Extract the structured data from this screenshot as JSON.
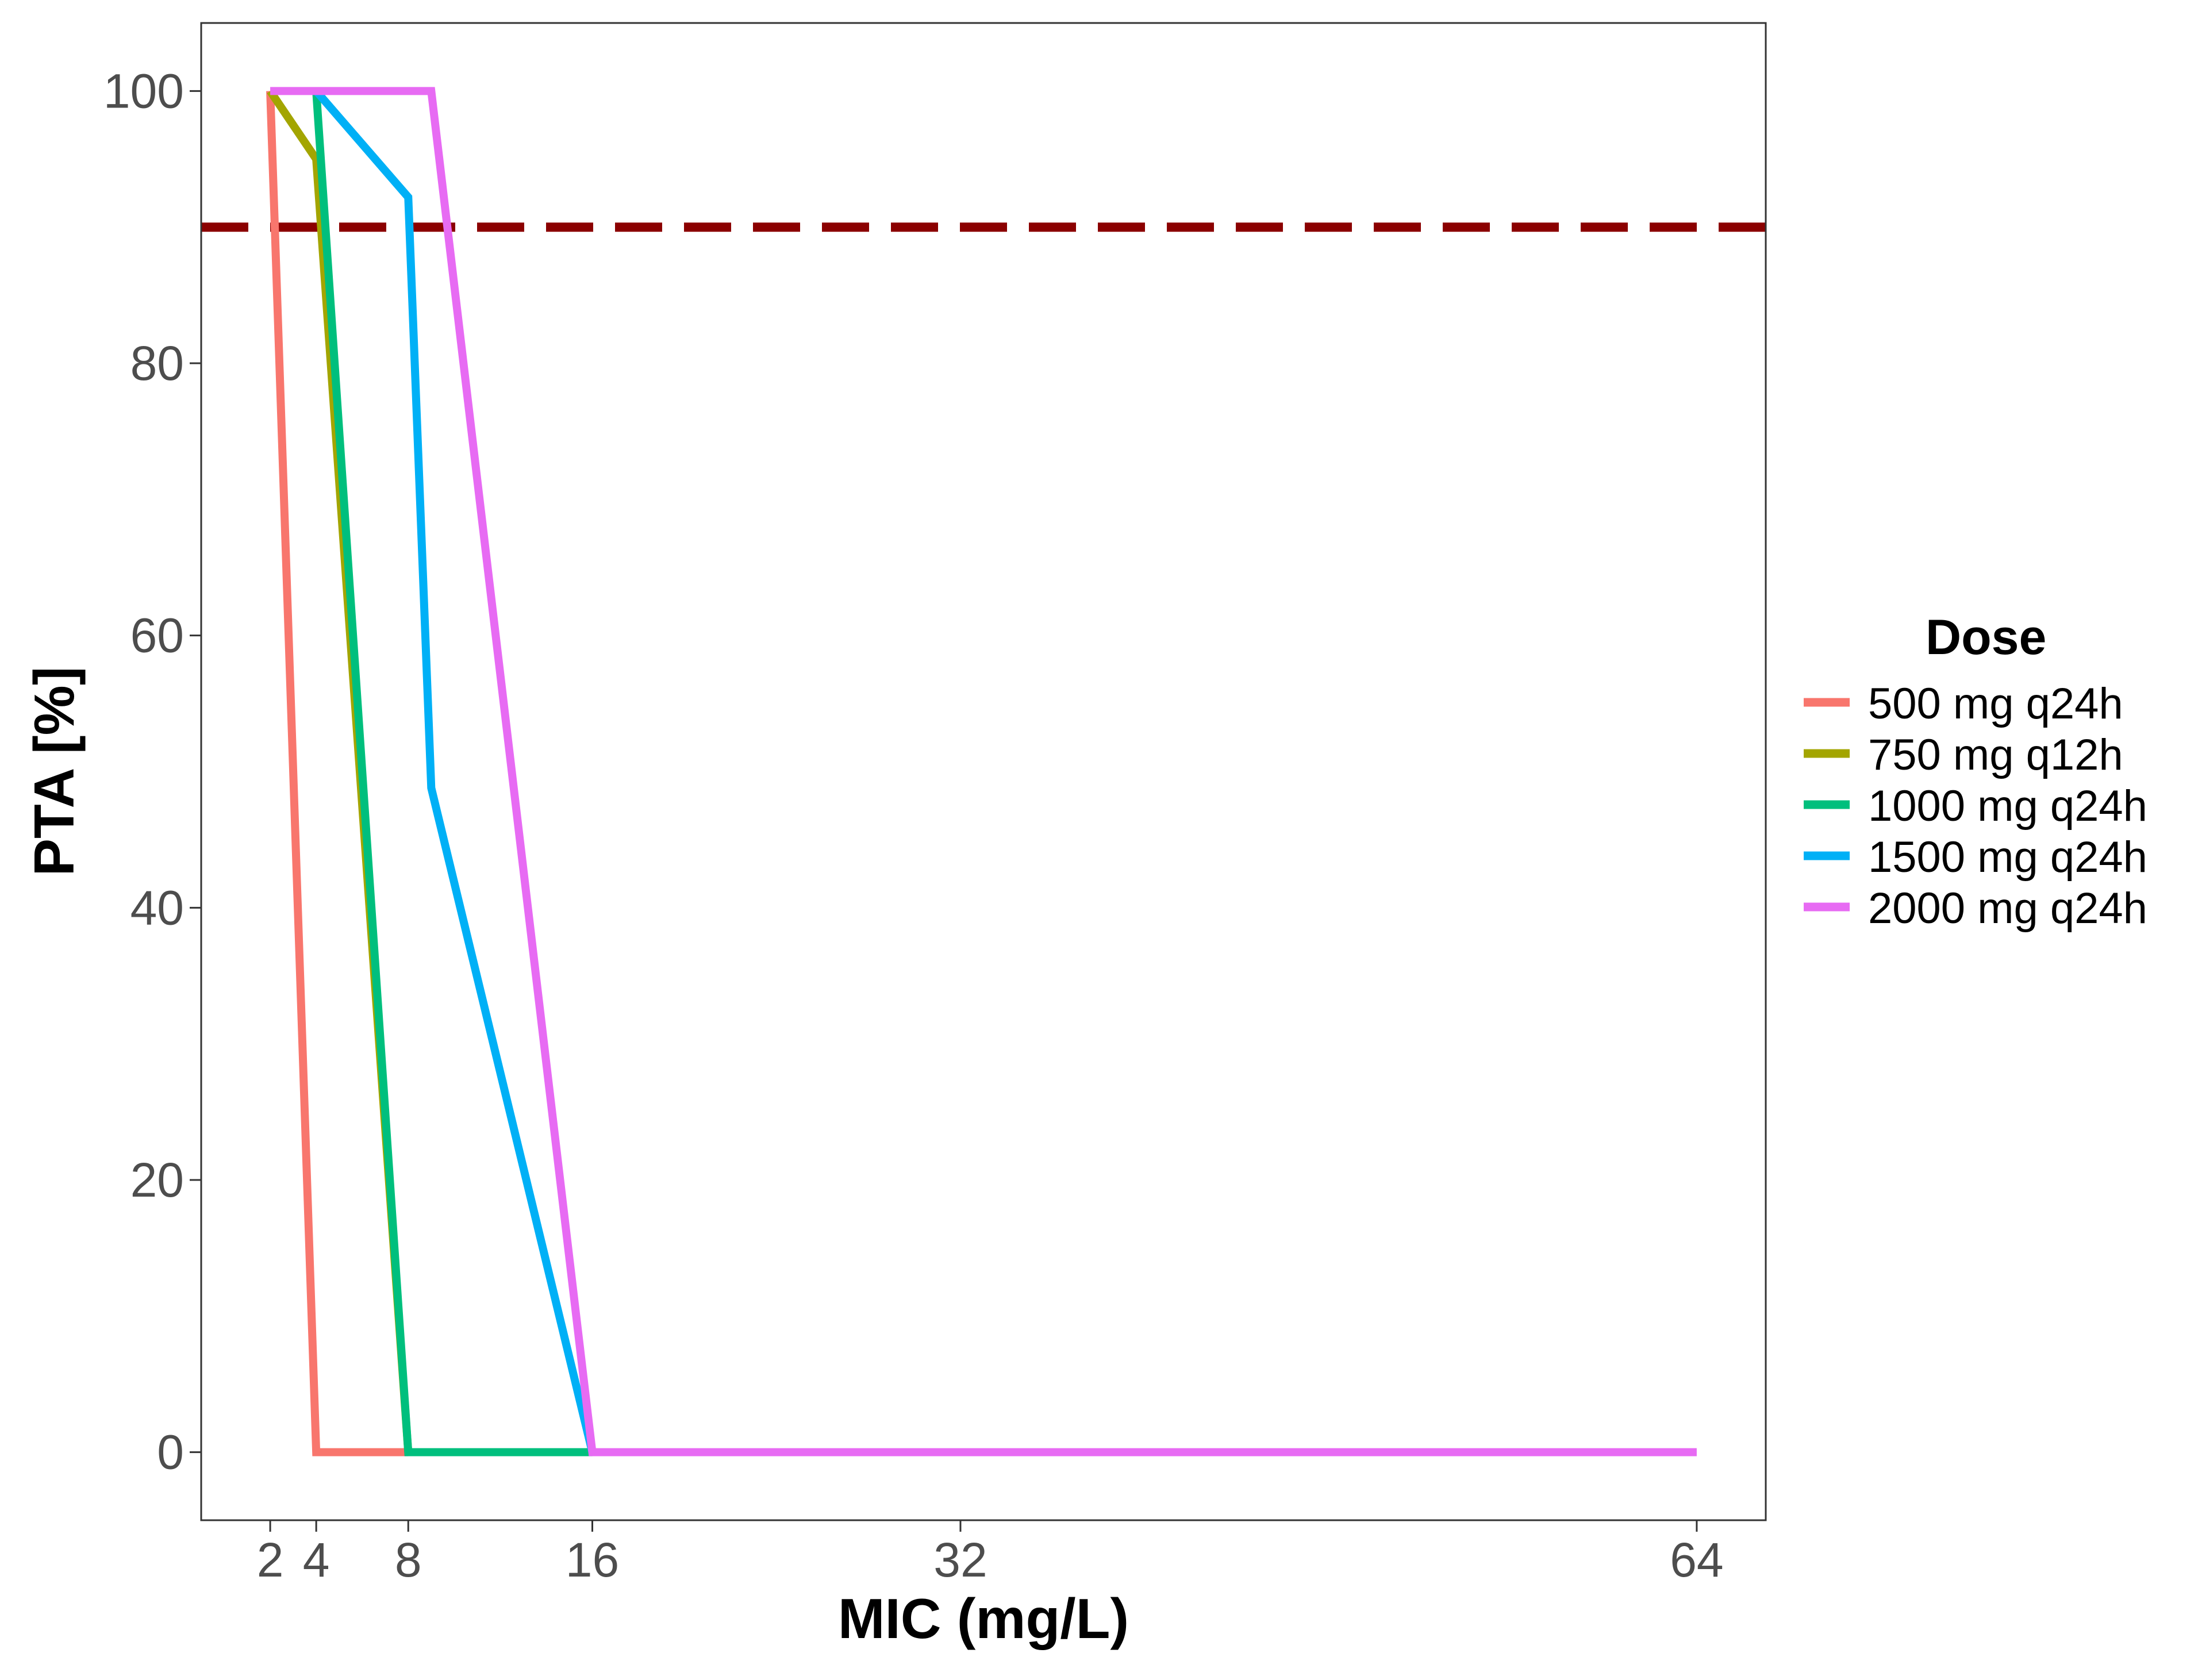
{
  "chart_data": {
    "type": "line",
    "xlabel": "MIC (mg/L)",
    "ylabel": "PTA [%]",
    "xlim": [
      -1,
      67
    ],
    "ylim": [
      -5,
      105
    ],
    "x_ticks": [
      2,
      4,
      8,
      16,
      32,
      64
    ],
    "y_ticks": [
      0,
      20,
      40,
      60,
      80,
      100
    ],
    "grid": false,
    "legend": {
      "title": "Dose",
      "placement": "right"
    },
    "reference_line": {
      "y": 90,
      "style": "dashed",
      "color": "#8B0000"
    },
    "series": [
      {
        "name": "500 mg q24h",
        "color": "#F8766D",
        "x": [
          2,
          4,
          8
        ],
        "values": [
          100,
          0,
          0
        ]
      },
      {
        "name": "750 mg q12h",
        "color": "#A3A500",
        "x": [
          2,
          4,
          8
        ],
        "values": [
          100,
          95,
          0
        ]
      },
      {
        "name": "1000 mg q24h",
        "color": "#00BF7D",
        "x": [
          4,
          8,
          16
        ],
        "values": [
          100,
          0,
          0
        ]
      },
      {
        "name": "1500 mg q24h",
        "color": "#00B0F6",
        "x": [
          4,
          8,
          9,
          16
        ],
        "values": [
          100,
          92.2,
          48.8,
          0
        ]
      },
      {
        "name": "2000 mg q24h",
        "color": "#E76BF3",
        "x": [
          2,
          9,
          16,
          64
        ],
        "values": [
          100,
          100,
          0,
          0
        ]
      }
    ]
  }
}
